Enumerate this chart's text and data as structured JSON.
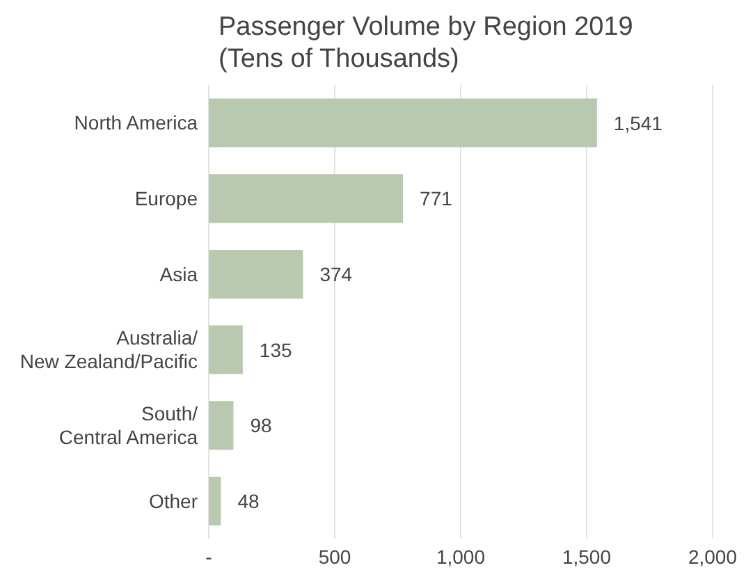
{
  "chart_data": {
    "type": "bar",
    "orientation": "horizontal",
    "title": "Passenger Volume by Region 2019\n(Tens of Thousands)",
    "categories": [
      "North America",
      "Europe",
      "Asia",
      "Australia/\nNew Zealand/Pacific",
      "South/\nCentral America",
      "Other"
    ],
    "values": [
      1541,
      771,
      374,
      135,
      98,
      48
    ],
    "color": "#b8c9b0",
    "xlim": [
      0,
      2000
    ],
    "xticks": [
      {
        "value": 0,
        "label": "-"
      },
      {
        "value": 500,
        "label": "500"
      },
      {
        "value": 1000,
        "label": "1,000"
      },
      {
        "value": 1500,
        "label": "1,500"
      },
      {
        "value": 2000,
        "label": "2,000"
      }
    ],
    "value_labels": [
      "1,541",
      "771",
      "374",
      "135",
      "98",
      "48"
    ],
    "grid": "x"
  }
}
